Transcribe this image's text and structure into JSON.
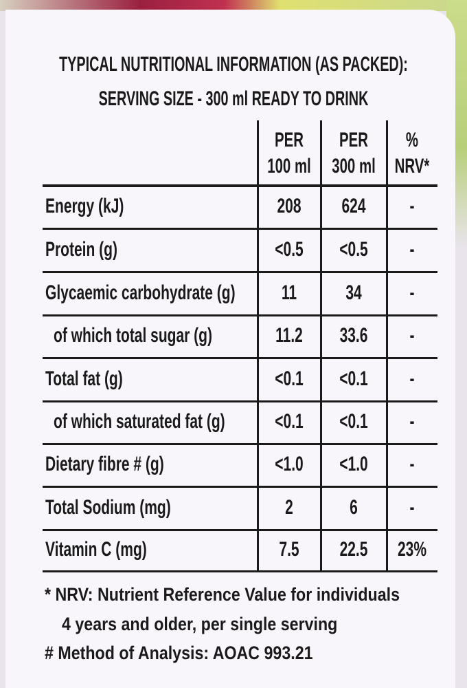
{
  "header": {
    "lines": [
      "TYPICAL NUTRITIONAL INFORMATION (AS PACKED):",
      "SERVING SIZE - 300 ml READY TO DRINK"
    ]
  },
  "table": {
    "columns": [
      [
        "PER",
        "100 ml"
      ],
      [
        "PER",
        "300 ml"
      ],
      [
        "%",
        "NRV*"
      ]
    ],
    "rows": [
      {
        "cells": [
          "Energy (kJ)",
          "208",
          "624",
          "-"
        ]
      },
      {
        "cells": [
          "Protein (g)",
          "<0.5",
          "<0.5",
          "-"
        ]
      },
      {
        "cells": [
          "Glycaemic carbohydrate (g)",
          "11",
          "34",
          "-"
        ]
      },
      {
        "cells": [
          "of which total sugar (g)",
          "11.2",
          "33.6",
          "-"
        ],
        "indent": true
      },
      {
        "cells": [
          "Total fat (g)",
          "<0.1",
          "<0.1",
          "-"
        ]
      },
      {
        "cells": [
          "of which saturated fat (g)",
          "<0.1",
          "<0.1",
          "-"
        ],
        "indent": true
      },
      {
        "cells": [
          "Dietary fibre # (g)",
          "<1.0",
          "<1.0",
          "-"
        ]
      },
      {
        "cells": [
          "Total Sodium (mg)",
          "2",
          "6",
          "-"
        ]
      },
      {
        "cells": [
          "Vitamin C (mg)",
          "7.5",
          "22.5",
          "23%"
        ]
      }
    ]
  },
  "footnotes": {
    "lines": [
      "* NRV: Nutrient Reference Value for individuals",
      "4 years and older, per single serving",
      "# Method of Analysis: AOAC 993.21"
    ]
  }
}
